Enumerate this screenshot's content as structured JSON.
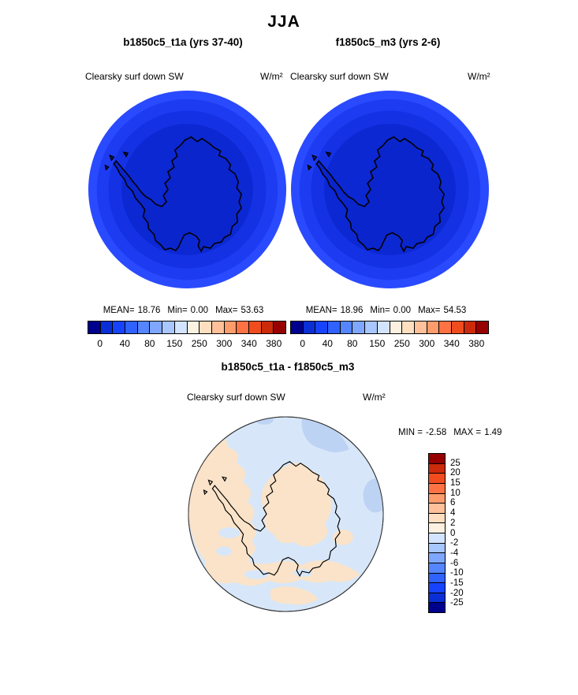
{
  "page": {
    "season_title": "JJA"
  },
  "panels": [
    {
      "title": "b1850c5_t1a (yrs 37-40)",
      "field_label": "Clearsky surf down SW",
      "units": "W/m²",
      "stats": {
        "mean_label": "MEAN=",
        "mean": "18.76",
        "min_label": "Min=",
        "min": "0.00",
        "max_label": "Max=",
        "max": "53.63"
      },
      "colorbar": {
        "tick_labels": [
          "0",
          "40",
          "80",
          "150",
          "250",
          "300",
          "340",
          "380"
        ]
      }
    },
    {
      "title": "f1850c5_m3 (yrs 2-6)",
      "field_label": "Clearsky surf down SW",
      "units": "W/m²",
      "stats": {
        "mean_label": "MEAN=",
        "mean": "18.96",
        "min_label": "Min=",
        "min": "0.00",
        "max_label": "Max=",
        "max": "54.53"
      },
      "colorbar": {
        "tick_labels": [
          "0",
          "40",
          "80",
          "150",
          "250",
          "300",
          "340",
          "380"
        ]
      }
    }
  ],
  "diff_panel": {
    "title": "b1850c5_t1a - f1850c5_m3",
    "field_label": "Clearsky surf down SW",
    "units": "W/m²",
    "stats": {
      "min_label": "MIN =",
      "min": "-2.58",
      "max_label": "MAX =",
      "max": "1.49"
    },
    "colorbar": {
      "tick_labels": [
        "25",
        "20",
        "15",
        "10",
        "6",
        "4",
        "2",
        "0",
        "-2",
        "-4",
        "-6",
        "-10",
        "-15",
        "-20",
        "-25"
      ]
    }
  },
  "palette": {
    "diverging_16": [
      "#00008f",
      "#0b2fd6",
      "#1743ff",
      "#2f62ff",
      "#5585ff",
      "#7fa7ff",
      "#a8c6ff",
      "#d3e4ff",
      "#fdf1e1",
      "#ffdfc0",
      "#ffc09a",
      "#ff9c6c",
      "#ff7244",
      "#f04c1e",
      "#cc2a0a",
      "#960000"
    ],
    "map": {
      "ring_outer": "#2a4aff",
      "ring_mid": "#1d3cf2",
      "ring_inner": "#1431e4",
      "core": "#0c28d2",
      "land": "#0b25cc",
      "coastline": "#000000"
    },
    "diff_map": {
      "ocean": "#d7e7f9",
      "positive": "#fae3c9",
      "negative_2": "#bdd3f4",
      "outline": "#333333",
      "coastline": "#000000"
    }
  },
  "chart_data": [
    {
      "type": "heatmap",
      "panel": "top-left",
      "title": "b1850c5_t1a (yrs 37-40)",
      "season": "JJA",
      "field": "Clearsky surf down SW",
      "units": "W/m²",
      "projection": "south polar stereographic",
      "region": "Antarctica",
      "stats": {
        "mean": 18.76,
        "min": 0.0,
        "max": 53.63
      },
      "colorbar": {
        "orientation": "horizontal",
        "n_boxes": 16,
        "tick_values": [
          0,
          40,
          80,
          150,
          250,
          300,
          340,
          380
        ]
      },
      "spatial_pattern": "near 0 W/m² over pole (polar night), increasing in concentric rings toward ~60-80 W/m² at map edge"
    },
    {
      "type": "heatmap",
      "panel": "top-right",
      "title": "f1850c5_m3 (yrs 2-6)",
      "season": "JJA",
      "field": "Clearsky surf down SW",
      "units": "W/m²",
      "projection": "south polar stereographic",
      "region": "Antarctica",
      "stats": {
        "mean": 18.96,
        "min": 0.0,
        "max": 54.53
      },
      "colorbar": {
        "orientation": "horizontal",
        "n_boxes": 16,
        "tick_values": [
          0,
          40,
          80,
          150,
          250,
          300,
          340,
          380
        ]
      },
      "spatial_pattern": "near 0 W/m² over pole (polar night), increasing in concentric rings toward ~60-80 W/m² at map edge"
    },
    {
      "type": "heatmap",
      "panel": "bottom-difference",
      "title": "b1850c5_t1a - f1850c5_m3",
      "season": "JJA",
      "field": "Clearsky surf down SW",
      "units": "W/m²",
      "projection": "south polar stereographic",
      "region": "Antarctica",
      "stats": {
        "min": -2.58,
        "max": 1.49
      },
      "colorbar": {
        "orientation": "vertical",
        "n_boxes": 16,
        "tick_values": [
          25,
          20,
          15,
          10,
          6,
          4,
          2,
          0,
          -2,
          -4,
          -6,
          -10,
          -15,
          -20,
          -25
        ]
      },
      "spatial_pattern": "mostly 0 to -2 W/m² (pale blue) with patches of 0 to +2 W/m² (pale orange) west and south, small -2 to -4 patches northeast"
    }
  ]
}
